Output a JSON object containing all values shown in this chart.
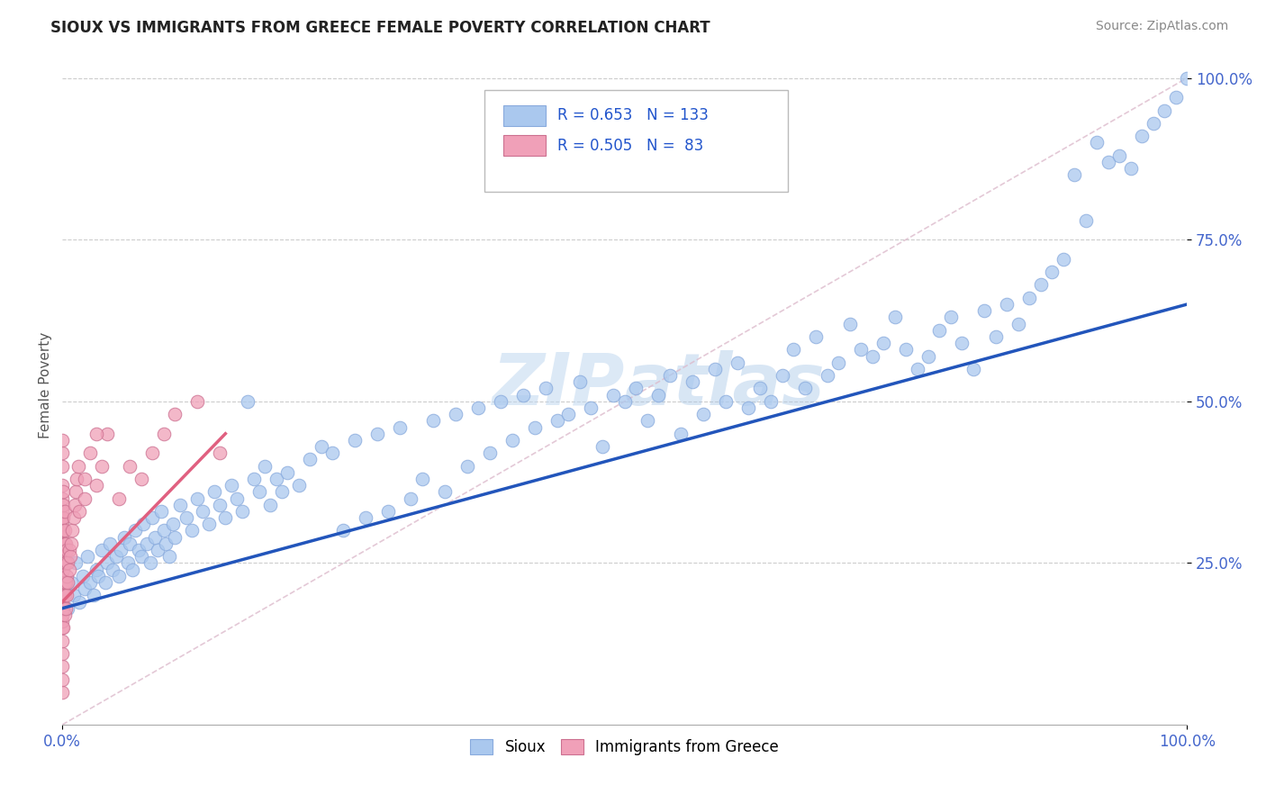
{
  "title": "SIOUX VS IMMIGRANTS FROM GREECE FEMALE POVERTY CORRELATION CHART",
  "source": "Source: ZipAtlas.com",
  "ylabel": "Female Poverty",
  "watermark": "ZIPAtlas",
  "sioux_color": "#aac8ee",
  "greece_color": "#f0a0b8",
  "sioux_line_color": "#2255bb",
  "greece_line_color": "#e06080",
  "diagonal_color": "#ddbbcc",
  "r_sioux": 0.653,
  "n_sioux": 133,
  "r_greece": 0.505,
  "n_greece": 83,
  "background_color": "#ffffff",
  "grid_color": "#cccccc",
  "y_ticks": [
    0.25,
    0.5,
    0.75,
    1.0
  ],
  "y_tick_labels": [
    "25.0%",
    "50.0%",
    "75.0%",
    "100.0%"
  ],
  "sioux_points": [
    [
      0.005,
      0.18
    ],
    [
      0.008,
      0.22
    ],
    [
      0.01,
      0.2
    ],
    [
      0.012,
      0.25
    ],
    [
      0.015,
      0.19
    ],
    [
      0.018,
      0.23
    ],
    [
      0.02,
      0.21
    ],
    [
      0.022,
      0.26
    ],
    [
      0.025,
      0.22
    ],
    [
      0.028,
      0.2
    ],
    [
      0.03,
      0.24
    ],
    [
      0.032,
      0.23
    ],
    [
      0.035,
      0.27
    ],
    [
      0.038,
      0.22
    ],
    [
      0.04,
      0.25
    ],
    [
      0.042,
      0.28
    ],
    [
      0.045,
      0.24
    ],
    [
      0.048,
      0.26
    ],
    [
      0.05,
      0.23
    ],
    [
      0.052,
      0.27
    ],
    [
      0.055,
      0.29
    ],
    [
      0.058,
      0.25
    ],
    [
      0.06,
      0.28
    ],
    [
      0.062,
      0.24
    ],
    [
      0.065,
      0.3
    ],
    [
      0.068,
      0.27
    ],
    [
      0.07,
      0.26
    ],
    [
      0.072,
      0.31
    ],
    [
      0.075,
      0.28
    ],
    [
      0.078,
      0.25
    ],
    [
      0.08,
      0.32
    ],
    [
      0.082,
      0.29
    ],
    [
      0.085,
      0.27
    ],
    [
      0.088,
      0.33
    ],
    [
      0.09,
      0.3
    ],
    [
      0.092,
      0.28
    ],
    [
      0.095,
      0.26
    ],
    [
      0.098,
      0.31
    ],
    [
      0.1,
      0.29
    ],
    [
      0.105,
      0.34
    ],
    [
      0.11,
      0.32
    ],
    [
      0.115,
      0.3
    ],
    [
      0.12,
      0.35
    ],
    [
      0.125,
      0.33
    ],
    [
      0.13,
      0.31
    ],
    [
      0.135,
      0.36
    ],
    [
      0.14,
      0.34
    ],
    [
      0.145,
      0.32
    ],
    [
      0.15,
      0.37
    ],
    [
      0.155,
      0.35
    ],
    [
      0.16,
      0.33
    ],
    [
      0.165,
      0.5
    ],
    [
      0.17,
      0.38
    ],
    [
      0.175,
      0.36
    ],
    [
      0.18,
      0.4
    ],
    [
      0.185,
      0.34
    ],
    [
      0.19,
      0.38
    ],
    [
      0.195,
      0.36
    ],
    [
      0.2,
      0.39
    ],
    [
      0.21,
      0.37
    ],
    [
      0.22,
      0.41
    ],
    [
      0.23,
      0.43
    ],
    [
      0.24,
      0.42
    ],
    [
      0.25,
      0.3
    ],
    [
      0.26,
      0.44
    ],
    [
      0.27,
      0.32
    ],
    [
      0.28,
      0.45
    ],
    [
      0.29,
      0.33
    ],
    [
      0.3,
      0.46
    ],
    [
      0.31,
      0.35
    ],
    [
      0.32,
      0.38
    ],
    [
      0.33,
      0.47
    ],
    [
      0.34,
      0.36
    ],
    [
      0.35,
      0.48
    ],
    [
      0.36,
      0.4
    ],
    [
      0.37,
      0.49
    ],
    [
      0.38,
      0.42
    ],
    [
      0.39,
      0.5
    ],
    [
      0.4,
      0.44
    ],
    [
      0.41,
      0.51
    ],
    [
      0.42,
      0.46
    ],
    [
      0.43,
      0.52
    ],
    [
      0.44,
      0.47
    ],
    [
      0.45,
      0.48
    ],
    [
      0.46,
      0.53
    ],
    [
      0.47,
      0.49
    ],
    [
      0.48,
      0.43
    ],
    [
      0.49,
      0.51
    ],
    [
      0.5,
      0.5
    ],
    [
      0.51,
      0.52
    ],
    [
      0.52,
      0.47
    ],
    [
      0.53,
      0.51
    ],
    [
      0.54,
      0.54
    ],
    [
      0.55,
      0.45
    ],
    [
      0.56,
      0.53
    ],
    [
      0.57,
      0.48
    ],
    [
      0.58,
      0.55
    ],
    [
      0.59,
      0.5
    ],
    [
      0.6,
      0.56
    ],
    [
      0.61,
      0.49
    ],
    [
      0.62,
      0.52
    ],
    [
      0.63,
      0.5
    ],
    [
      0.64,
      0.54
    ],
    [
      0.65,
      0.58
    ],
    [
      0.66,
      0.52
    ],
    [
      0.67,
      0.6
    ],
    [
      0.68,
      0.54
    ],
    [
      0.69,
      0.56
    ],
    [
      0.7,
      0.62
    ],
    [
      0.71,
      0.58
    ],
    [
      0.72,
      0.57
    ],
    [
      0.73,
      0.59
    ],
    [
      0.74,
      0.63
    ],
    [
      0.75,
      0.58
    ],
    [
      0.76,
      0.55
    ],
    [
      0.77,
      0.57
    ],
    [
      0.78,
      0.61
    ],
    [
      0.79,
      0.63
    ],
    [
      0.8,
      0.59
    ],
    [
      0.81,
      0.55
    ],
    [
      0.82,
      0.64
    ],
    [
      0.83,
      0.6
    ],
    [
      0.84,
      0.65
    ],
    [
      0.85,
      0.62
    ],
    [
      0.86,
      0.66
    ],
    [
      0.87,
      0.68
    ],
    [
      0.88,
      0.7
    ],
    [
      0.89,
      0.72
    ],
    [
      0.9,
      0.85
    ],
    [
      0.91,
      0.78
    ],
    [
      0.92,
      0.9
    ],
    [
      0.93,
      0.87
    ],
    [
      0.94,
      0.88
    ],
    [
      0.95,
      0.86
    ],
    [
      0.96,
      0.91
    ],
    [
      0.97,
      0.93
    ],
    [
      0.98,
      0.95
    ],
    [
      0.99,
      0.97
    ],
    [
      1.0,
      1.0
    ]
  ],
  "greece_points": [
    [
      0.0,
      0.05
    ],
    [
      0.0,
      0.07
    ],
    [
      0.0,
      0.09
    ],
    [
      0.0,
      0.11
    ],
    [
      0.0,
      0.13
    ],
    [
      0.0,
      0.15
    ],
    [
      0.0,
      0.16
    ],
    [
      0.0,
      0.17
    ],
    [
      0.0,
      0.18
    ],
    [
      0.0,
      0.19
    ],
    [
      0.0,
      0.2
    ],
    [
      0.0,
      0.21
    ],
    [
      0.0,
      0.22
    ],
    [
      0.0,
      0.23
    ],
    [
      0.0,
      0.24
    ],
    [
      0.0,
      0.25
    ],
    [
      0.0,
      0.26
    ],
    [
      0.0,
      0.27
    ],
    [
      0.0,
      0.28
    ],
    [
      0.0,
      0.29
    ],
    [
      0.0,
      0.3
    ],
    [
      0.0,
      0.31
    ],
    [
      0.0,
      0.32
    ],
    [
      0.0,
      0.33
    ],
    [
      0.0,
      0.35
    ],
    [
      0.0,
      0.37
    ],
    [
      0.0,
      0.4
    ],
    [
      0.0,
      0.42
    ],
    [
      0.0,
      0.44
    ],
    [
      0.001,
      0.15
    ],
    [
      0.001,
      0.18
    ],
    [
      0.001,
      0.2
    ],
    [
      0.001,
      0.22
    ],
    [
      0.001,
      0.24
    ],
    [
      0.001,
      0.26
    ],
    [
      0.001,
      0.28
    ],
    [
      0.001,
      0.3
    ],
    [
      0.001,
      0.32
    ],
    [
      0.001,
      0.34
    ],
    [
      0.001,
      0.36
    ],
    [
      0.002,
      0.17
    ],
    [
      0.002,
      0.2
    ],
    [
      0.002,
      0.22
    ],
    [
      0.002,
      0.25
    ],
    [
      0.002,
      0.28
    ],
    [
      0.002,
      0.3
    ],
    [
      0.002,
      0.33
    ],
    [
      0.003,
      0.18
    ],
    [
      0.003,
      0.22
    ],
    [
      0.003,
      0.25
    ],
    [
      0.003,
      0.28
    ],
    [
      0.004,
      0.2
    ],
    [
      0.004,
      0.23
    ],
    [
      0.004,
      0.27
    ],
    [
      0.005,
      0.22
    ],
    [
      0.005,
      0.25
    ],
    [
      0.006,
      0.24
    ],
    [
      0.006,
      0.27
    ],
    [
      0.007,
      0.26
    ],
    [
      0.008,
      0.28
    ],
    [
      0.009,
      0.3
    ],
    [
      0.01,
      0.32
    ],
    [
      0.011,
      0.34
    ],
    [
      0.012,
      0.36
    ],
    [
      0.013,
      0.38
    ],
    [
      0.014,
      0.4
    ],
    [
      0.015,
      0.33
    ],
    [
      0.02,
      0.38
    ],
    [
      0.025,
      0.42
    ],
    [
      0.03,
      0.37
    ],
    [
      0.035,
      0.4
    ],
    [
      0.04,
      0.45
    ],
    [
      0.05,
      0.35
    ],
    [
      0.06,
      0.4
    ],
    [
      0.07,
      0.38
    ],
    [
      0.08,
      0.42
    ],
    [
      0.09,
      0.45
    ],
    [
      0.1,
      0.48
    ],
    [
      0.12,
      0.5
    ],
    [
      0.14,
      0.42
    ],
    [
      0.02,
      0.35
    ],
    [
      0.03,
      0.45
    ]
  ]
}
